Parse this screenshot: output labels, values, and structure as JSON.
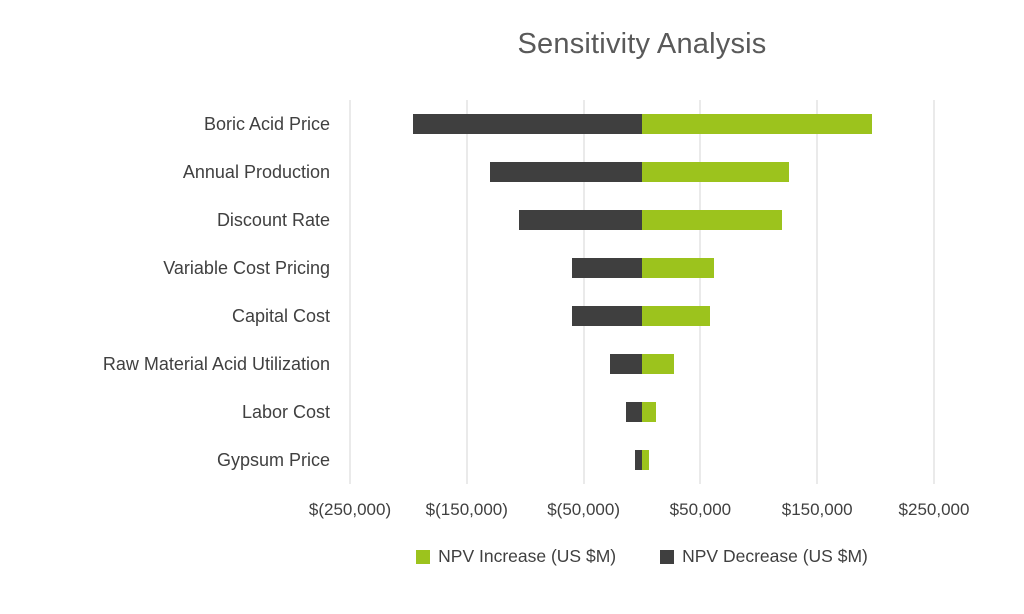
{
  "chart_data": {
    "type": "bar",
    "orientation": "horizontal",
    "title": "Sensitivity Analysis",
    "categories": [
      "Boric Acid Price",
      "Annual Production",
      "Discount Rate",
      "Variable Cost Pricing",
      "Capital Cost",
      "Raw Material Acid Utilization",
      "Labor Cost",
      "Gypsum Price"
    ],
    "series": [
      {
        "name": "NPV Increase (US $M)",
        "color": "#9cc31d",
        "values": [
          197000,
          126000,
          120000,
          62000,
          58000,
          27000,
          12000,
          6000
        ]
      },
      {
        "name": "NPV Decrease (US $M)",
        "color": "#3f3f3f",
        "values": [
          -196000,
          -130000,
          -105000,
          -60000,
          -60000,
          -27000,
          -14000,
          -6000
        ]
      }
    ],
    "xlim": [
      -250000,
      250000
    ],
    "xticks": {
      "values": [
        -250000,
        -150000,
        -50000,
        50000,
        150000,
        250000
      ],
      "labels": [
        "$(250,000)",
        "$(150,000)",
        "$(50,000)",
        "$50,000",
        "$150,000",
        "$250,000"
      ]
    },
    "grid": "vertical",
    "legend_position": "bottom",
    "background": "#ffffff",
    "title_color": "#595959",
    "axis_text_color": "#404040",
    "gridline_color": "#d6d6d6"
  }
}
